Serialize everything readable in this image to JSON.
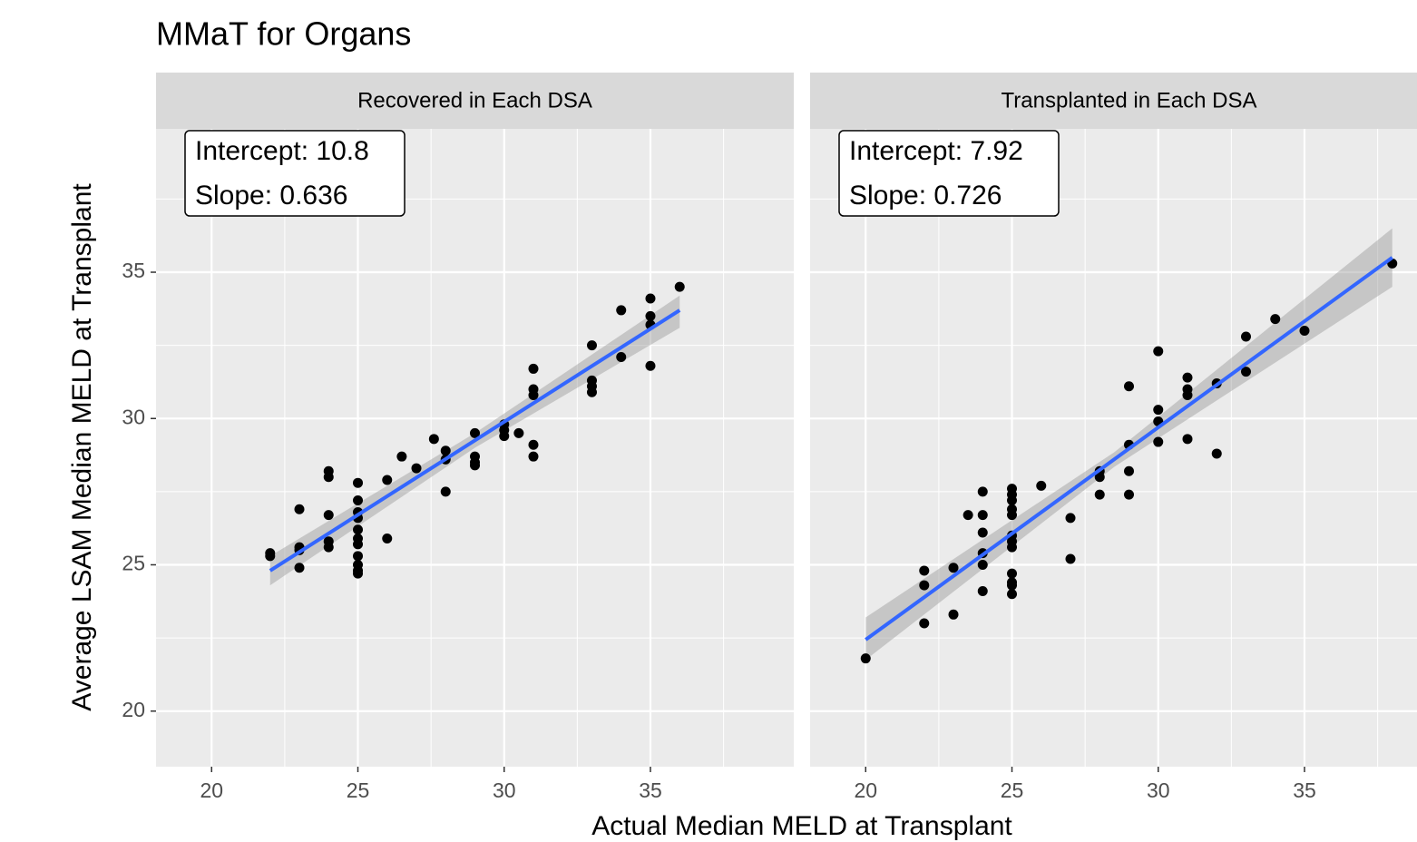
{
  "figure": {
    "title": "MMaT for Organs",
    "x_label": "Actual Median MELD at Transplant",
    "y_label": "Average LSAM Median MELD at Transplant"
  },
  "chart_data": [
    {
      "type": "scatter",
      "subtitle": "Recovered in Each DSA",
      "color": "#000000",
      "line_color": "#3366ff",
      "band_color": "#999999",
      "annotation": [
        "Intercept: 10.8",
        "Slope: 0.636"
      ],
      "xlim": [
        18.1,
        39.9
      ],
      "ylim": [
        18.1,
        39.9
      ],
      "xticks": [
        20,
        25,
        30,
        35
      ],
      "yticks": [
        20,
        25,
        30,
        35
      ],
      "x_minor_ticks": [
        22.5,
        27.5,
        32.5,
        37.5
      ],
      "y_minor_ticks": [
        22.5,
        27.5,
        32.5,
        37.5
      ],
      "show_y_tick_labels": true,
      "grid": true,
      "x": [
        22,
        22,
        23,
        23,
        23,
        23,
        24,
        24,
        24,
        24,
        24,
        25,
        25,
        25,
        25,
        25,
        25,
        25,
        25,
        25,
        25,
        25,
        26,
        26,
        26.5,
        27,
        27.6,
        28,
        28,
        28,
        29,
        29,
        29,
        29,
        30,
        30,
        30,
        30.5,
        31,
        31,
        31,
        31,
        31,
        33,
        33,
        33,
        33,
        34,
        34,
        35,
        35,
        35,
        35,
        36
      ],
      "y": [
        25.4,
        25.3,
        26.9,
        25.6,
        25.5,
        24.9,
        28.2,
        28.0,
        26.7,
        25.8,
        25.6,
        27.8,
        27.2,
        26.8,
        26.6,
        26.2,
        25.9,
        25.7,
        25.3,
        25.0,
        24.8,
        24.7,
        27.9,
        25.9,
        28.7,
        28.3,
        29.3,
        28.9,
        28.6,
        27.5,
        29.5,
        28.7,
        28.5,
        28.4,
        29.8,
        29.6,
        29.4,
        29.5,
        31.7,
        31.0,
        30.8,
        29.1,
        28.7,
        32.5,
        31.3,
        31.1,
        30.9,
        33.7,
        32.1,
        34.1,
        33.5,
        33.2,
        31.8,
        34.5
      ],
      "fit": {
        "x": [
          22,
          36
        ],
        "y": [
          24.8,
          33.7
        ]
      },
      "band": {
        "x": [
          22,
          29,
          36
        ],
        "lower": [
          24.3,
          29.0,
          33.1
        ],
        "upper": [
          25.3,
          29.5,
          34.2
        ]
      }
    },
    {
      "type": "scatter",
      "subtitle": "Transplanted in Each DSA",
      "color": "#000000",
      "line_color": "#3366ff",
      "band_color": "#999999",
      "annotation": [
        "Intercept: 7.92",
        "Slope: 0.726"
      ],
      "xlim": [
        18.1,
        39.9
      ],
      "ylim": [
        18.1,
        39.9
      ],
      "xticks": [
        20,
        25,
        30,
        35
      ],
      "yticks": [
        20,
        25,
        30,
        35
      ],
      "x_minor_ticks": [
        22.5,
        27.5,
        32.5,
        37.5
      ],
      "y_minor_ticks": [
        22.5,
        27.5,
        32.5,
        37.5
      ],
      "show_y_tick_labels": false,
      "grid": true,
      "x": [
        20,
        22,
        22,
        22,
        23,
        23,
        23.5,
        24,
        24,
        24,
        24,
        24,
        24,
        25,
        25,
        25,
        25,
        25,
        25,
        25,
        25,
        25,
        25,
        25,
        25,
        26,
        27,
        27,
        28,
        28,
        28,
        29,
        29,
        29,
        29,
        30,
        30,
        30,
        30,
        31,
        31,
        31,
        31,
        32,
        32,
        33,
        33,
        34,
        35,
        38
      ],
      "y": [
        21.8,
        24.8,
        24.3,
        23.0,
        24.9,
        23.3,
        26.7,
        27.5,
        26.7,
        26.1,
        25.4,
        25.0,
        24.1,
        27.6,
        27.4,
        27.2,
        26.9,
        26.7,
        26.0,
        25.8,
        25.6,
        24.7,
        24.4,
        24.3,
        24.0,
        27.7,
        26.6,
        25.2,
        28.2,
        28.0,
        27.4,
        31.1,
        29.1,
        28.2,
        27.4,
        32.3,
        30.3,
        29.9,
        29.2,
        31.4,
        31.0,
        30.8,
        29.3,
        31.2,
        28.8,
        32.8,
        31.6,
        33.4,
        33.0,
        35.3
      ],
      "fit": {
        "x": [
          20,
          38
        ],
        "y": [
          22.44,
          35.5
        ]
      },
      "band": {
        "x": [
          20,
          28.5,
          38
        ],
        "lower": [
          21.75,
          28.35,
          34.5
        ],
        "upper": [
          23.2,
          28.85,
          36.5
        ]
      }
    }
  ]
}
